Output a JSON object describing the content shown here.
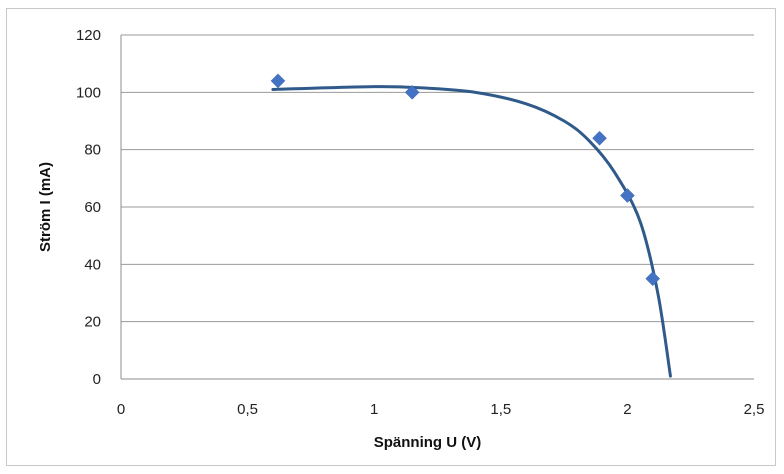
{
  "chart_data": {
    "type": "scatter",
    "xlabel": "Spänning U (V)",
    "ylabel": "Ström I (mA)",
    "xlim": [
      0,
      2.5
    ],
    "ylim": [
      0,
      120
    ],
    "x_ticks": [
      "0",
      "0,5",
      "1",
      "1,5",
      "2",
      "2,5"
    ],
    "y_ticks": [
      "0",
      "20",
      "40",
      "60",
      "80",
      "100",
      "120"
    ],
    "grid": "horizontal",
    "legend": "none",
    "series": [
      {
        "marker": "diamond",
        "color": "#4472c4",
        "points": [
          {
            "x": 0.62,
            "y": 104
          },
          {
            "x": 1.15,
            "y": 100
          },
          {
            "x": 1.89,
            "y": 84
          },
          {
            "x": 2.0,
            "y": 64
          },
          {
            "x": 2.1,
            "y": 35
          }
        ]
      }
    ],
    "trendline": {
      "color": "#2f5a8a",
      "points": [
        {
          "x": 0.6,
          "y": 101
        },
        {
          "x": 1.0,
          "y": 102
        },
        {
          "x": 1.2,
          "y": 101.5
        },
        {
          "x": 1.4,
          "y": 100
        },
        {
          "x": 1.6,
          "y": 96
        },
        {
          "x": 1.75,
          "y": 90
        },
        {
          "x": 1.85,
          "y": 83
        },
        {
          "x": 1.95,
          "y": 72
        },
        {
          "x": 2.05,
          "y": 55
        },
        {
          "x": 2.12,
          "y": 30
        },
        {
          "x": 2.17,
          "y": 1
        }
      ]
    }
  }
}
